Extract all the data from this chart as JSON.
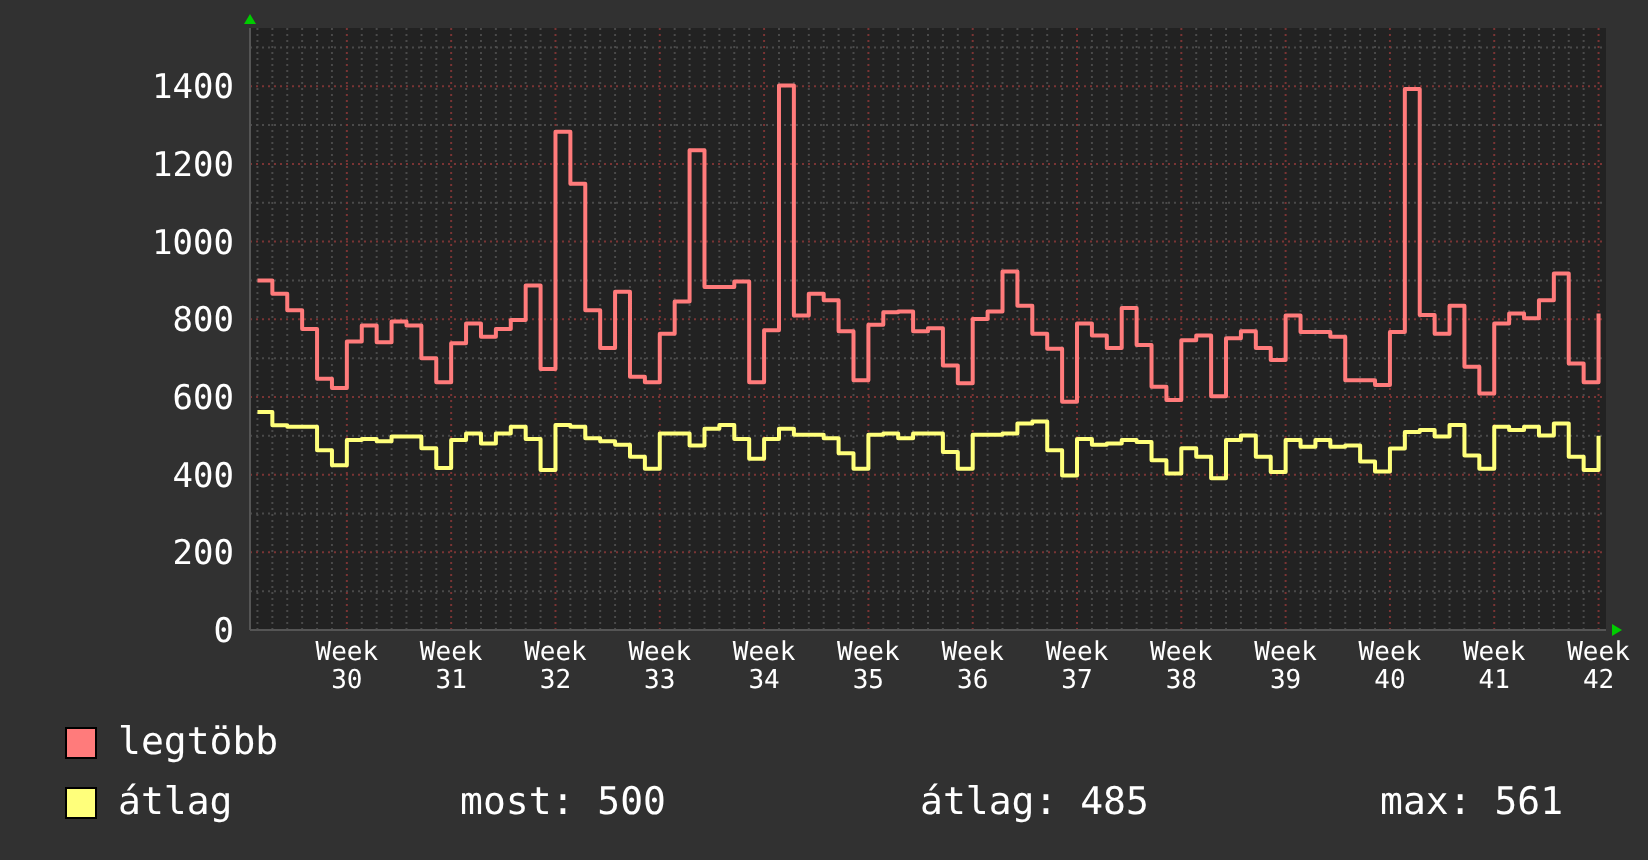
{
  "chart_data": {
    "type": "step",
    "categories": [
      null,
      null,
      null,
      null,
      null,
      null,
      "Week 30",
      null,
      null,
      null,
      null,
      null,
      null,
      "Week 31",
      null,
      null,
      null,
      null,
      null,
      null,
      "Week 32",
      null,
      null,
      null,
      null,
      null,
      null,
      "Week 33",
      null,
      null,
      null,
      null,
      null,
      null,
      "Week 34",
      null,
      null,
      null,
      null,
      null,
      null,
      "Week 35",
      null,
      null,
      null,
      null,
      null,
      null,
      "Week 36",
      null,
      null,
      null,
      null,
      null,
      null,
      "Week 37",
      null,
      null,
      null,
      null,
      null,
      null,
      "Week 38",
      null,
      null,
      null,
      null,
      null,
      null,
      "Week 39",
      null,
      null,
      null,
      null,
      null,
      null,
      "Week 40",
      null,
      null,
      null,
      null,
      null,
      null,
      "Week 41",
      null,
      null,
      null,
      null,
      null,
      null,
      "Week 42"
    ],
    "series": [
      {
        "name": "legtöbb",
        "color": "#ff7b7b",
        "values": [
          900,
          866,
          823,
          775,
          647,
          623,
          743,
          784,
          741,
          794,
          784,
          700,
          638,
          738,
          789,
          755,
          775,
          798,
          887,
          672,
          1283,
          1149,
          823,
          726,
          871,
          652,
          638,
          763,
          846,
          1235,
          883,
          883,
          897,
          638,
          772,
          1402,
          810,
          866,
          849,
          769,
          643,
          786,
          818,
          820,
          769,
          777,
          681,
          635,
          801,
          820,
          923,
          835,
          763,
          724,
          588,
          789,
          758,
          726,
          829,
          734,
          626,
          592,
          746,
          758,
          602,
          751,
          769,
          726,
          695,
          810,
          767,
          767,
          755,
          643,
          643,
          631,
          767,
          1393,
          811,
          763,
          835,
          678,
          609,
          789,
          815,
          803,
          849,
          918,
          686,
          638,
          815
        ]
      },
      {
        "name": "átlag",
        "color": "#ffff7b",
        "values": [
          561,
          527,
          523,
          523,
          463,
          424,
          489,
          492,
          486,
          498,
          498,
          468,
          417,
          489,
          506,
          480,
          506,
          523,
          492,
          412,
          528,
          523,
          494,
          486,
          477,
          446,
          415,
          506,
          506,
          475,
          518,
          528,
          492,
          441,
          492,
          518,
          503,
          503,
          494,
          455,
          415,
          503,
          506,
          494,
          506,
          506,
          458,
          415,
          503,
          503,
          506,
          532,
          537,
          463,
          398,
          492,
          477,
          480,
          489,
          484,
          437,
          403,
          468,
          446,
          391,
          489,
          501,
          446,
          407,
          489,
          472,
          489,
          472,
          475,
          434,
          408,
          467,
          510,
          515,
          498,
          528,
          449,
          415,
          523,
          515,
          523,
          501,
          532,
          446,
          412,
          500
        ]
      }
    ],
    "ylim": [
      0,
      1550
    ],
    "yticks": [
      0,
      200,
      400,
      600,
      800,
      1000,
      1200,
      1400
    ],
    "grid": true,
    "legend": "bottom left",
    "annotations": [
      "most: 500",
      "átlag: 485",
      "max: 561"
    ]
  }
}
